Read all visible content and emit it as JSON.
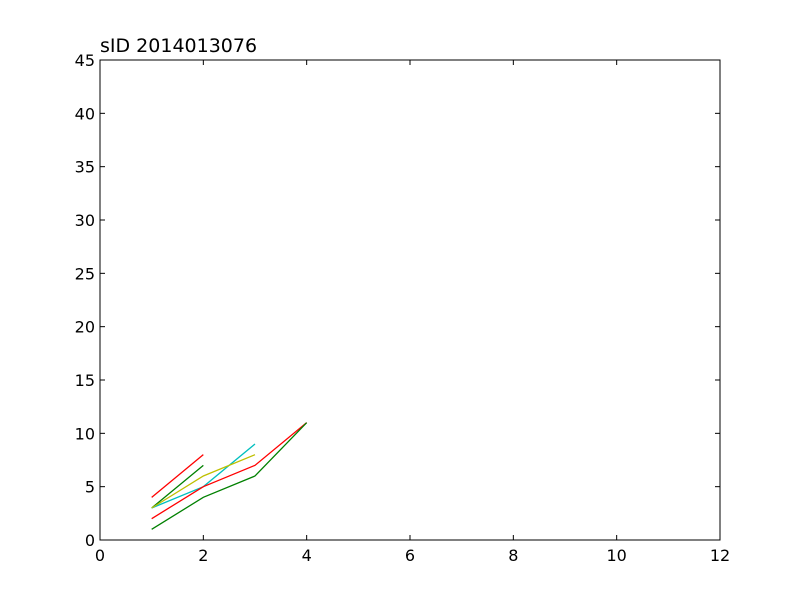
{
  "chart_data": {
    "type": "line",
    "title": "sID 2014013076",
    "xlabel": "",
    "ylabel": "",
    "xlim": [
      0,
      12
    ],
    "ylim": [
      0,
      45
    ],
    "xticks": [
      "0",
      "2",
      "4",
      "6",
      "8",
      "10",
      "12"
    ],
    "yticks": [
      "0",
      "5",
      "10",
      "15",
      "20",
      "25",
      "30",
      "35",
      "40",
      "45"
    ],
    "grid": false,
    "series": [
      {
        "color": "#ff0000",
        "x": [
          1,
          2
        ],
        "y": [
          4,
          8
        ]
      },
      {
        "color": "#008000",
        "x": [
          1,
          2
        ],
        "y": [
          3,
          7
        ]
      },
      {
        "color": "#00bfbf",
        "x": [
          1,
          2,
          3
        ],
        "y": [
          3,
          5,
          9
        ]
      },
      {
        "color": "#bfbf00",
        "x": [
          1,
          2,
          3
        ],
        "y": [
          3,
          6,
          8
        ]
      },
      {
        "color": "#ff0000",
        "x": [
          1,
          2,
          3,
          4
        ],
        "y": [
          2,
          5,
          7,
          11
        ]
      },
      {
        "color": "#008000",
        "x": [
          1,
          2,
          3,
          4
        ],
        "y": [
          1,
          4,
          6,
          11
        ]
      }
    ]
  }
}
